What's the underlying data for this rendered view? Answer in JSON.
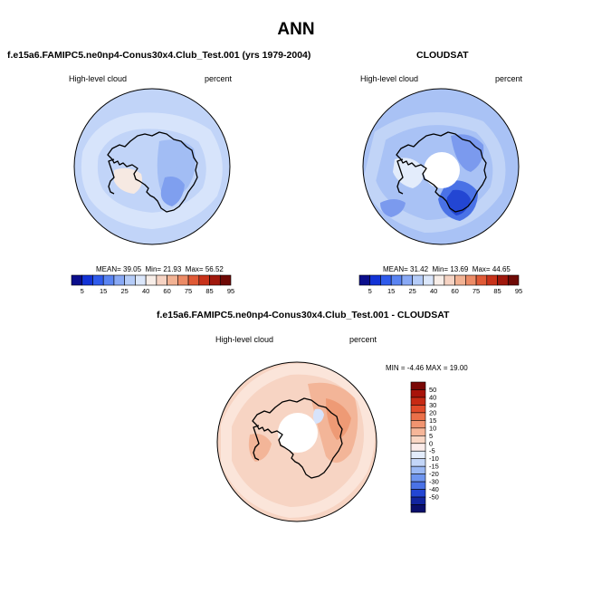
{
  "figure": {
    "title": "ANN"
  },
  "panels": [
    {
      "title": "f.e15a6.FAMIPC5.ne0np4-Conus30x4.Club_Test.001 (yrs 1979-2004)",
      "variable": "High-level cloud",
      "units": "percent",
      "stats": {
        "mean_label": "MEAN=",
        "mean": "39.05",
        "min_label": "Min=",
        "min": "21.93",
        "max_label": "Max=",
        "max": "56.52"
      }
    },
    {
      "title": "CLOUDSAT",
      "variable": "High-level cloud",
      "units": "percent",
      "stats": {
        "mean_label": "MEAN=",
        "mean": "31.42",
        "min_label": "Min=",
        "min": "13.69",
        "max_label": "Max=",
        "max": "44.65"
      }
    },
    {
      "title": "f.e15a6.FAMIPC5.ne0np4-Conus30x4.Club_Test.001 - CLOUDSAT",
      "variable": "High-level cloud",
      "units": "percent",
      "stats": {
        "min_label": "MIN =",
        "min": "-4.46",
        "max_label": "MAX =",
        "max": "19.00"
      }
    }
  ],
  "colorbars": {
    "field": {
      "labels": [
        "5",
        "15",
        "25",
        "40",
        "60",
        "75",
        "85",
        "95"
      ],
      "colors": [
        "#0b0e8c",
        "#1333d6",
        "#2f5bec",
        "#5a84f2",
        "#89a9f5",
        "#b5ccf8",
        "#dbe7fb",
        "#f8eee8",
        "#f6d3c3",
        "#f2b293",
        "#ec8b66",
        "#e05a36",
        "#c8321a",
        "#a0180c",
        "#6e0905"
      ]
    },
    "diff": {
      "labels": [
        "50",
        "40",
        "30",
        "20",
        "15",
        "10",
        "5",
        "0",
        "-5",
        "-10",
        "-15",
        "-20",
        "-30",
        "-40",
        "-50"
      ],
      "colors_top_to_bottom": [
        "#7a0806",
        "#a8130a",
        "#c72a14",
        "#e14b2a",
        "#eb7049",
        "#f19470",
        "#f6b699",
        "#f9d6c4",
        "#fbecea",
        "#e3ecfb",
        "#c3d6f8",
        "#9ab8f4",
        "#6e95ef",
        "#4a72e6",
        "#2346d3",
        "#12259f",
        "#0a0f6c"
      ]
    }
  },
  "map_fields": {
    "panel1": {
      "base_color": "#c1d4f8",
      "features": [
        {
          "color": "#dbe6fb",
          "level": "ring"
        },
        {
          "color": "#f6e9e2",
          "level": "ross-sea"
        },
        {
          "color": "#a2bdf4",
          "level": "east-ant"
        },
        {
          "color": "#7f9fef",
          "level": "east-ant-core"
        }
      ]
    },
    "panel2": {
      "base_color": "#a9c2f5",
      "features": [
        {
          "color": "#c7d8f8",
          "level": "ring"
        },
        {
          "color": "#e3ecfb",
          "level": "ross-sea"
        },
        {
          "color": "#7b9aee",
          "level": "interior"
        },
        {
          "color": "#4a72e6",
          "level": "wilkes"
        },
        {
          "color": "#2346d3",
          "level": "wilkes-core"
        }
      ]
    },
    "panel3": {
      "base_color": "#f7d4c3",
      "features": [
        {
          "color": "#fbe9e0",
          "level": "weak"
        },
        {
          "color": "#f3b598",
          "level": "moderate"
        },
        {
          "color": "#ee9a75",
          "level": "strong"
        },
        {
          "color": "#d7e3fb",
          "level": "negative"
        }
      ]
    }
  }
}
